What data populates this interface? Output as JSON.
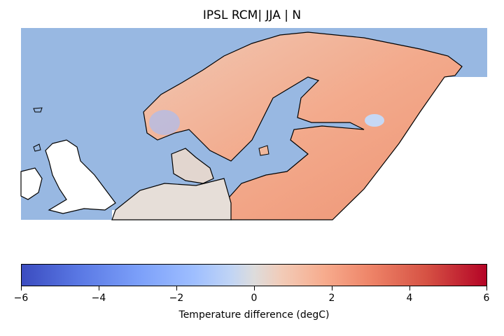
{
  "map": {
    "title": "IPSL RCM| JJA | N",
    "colorbar": {
      "label": "Temperature difference (degC)",
      "ticks": [
        "−6",
        "−4",
        "−2",
        "0",
        "2",
        "4",
        "6"
      ],
      "range": [
        -6,
        6
      ],
      "colormap": "coolwarm",
      "colors": {
        "low": "#3b4cc0",
        "mid": "#dddcdc",
        "high": "#b40426"
      }
    },
    "colors": {
      "sea": "#98b8e2",
      "outside_domain": "#ffffff",
      "coastline": "#000000"
    }
  }
}
